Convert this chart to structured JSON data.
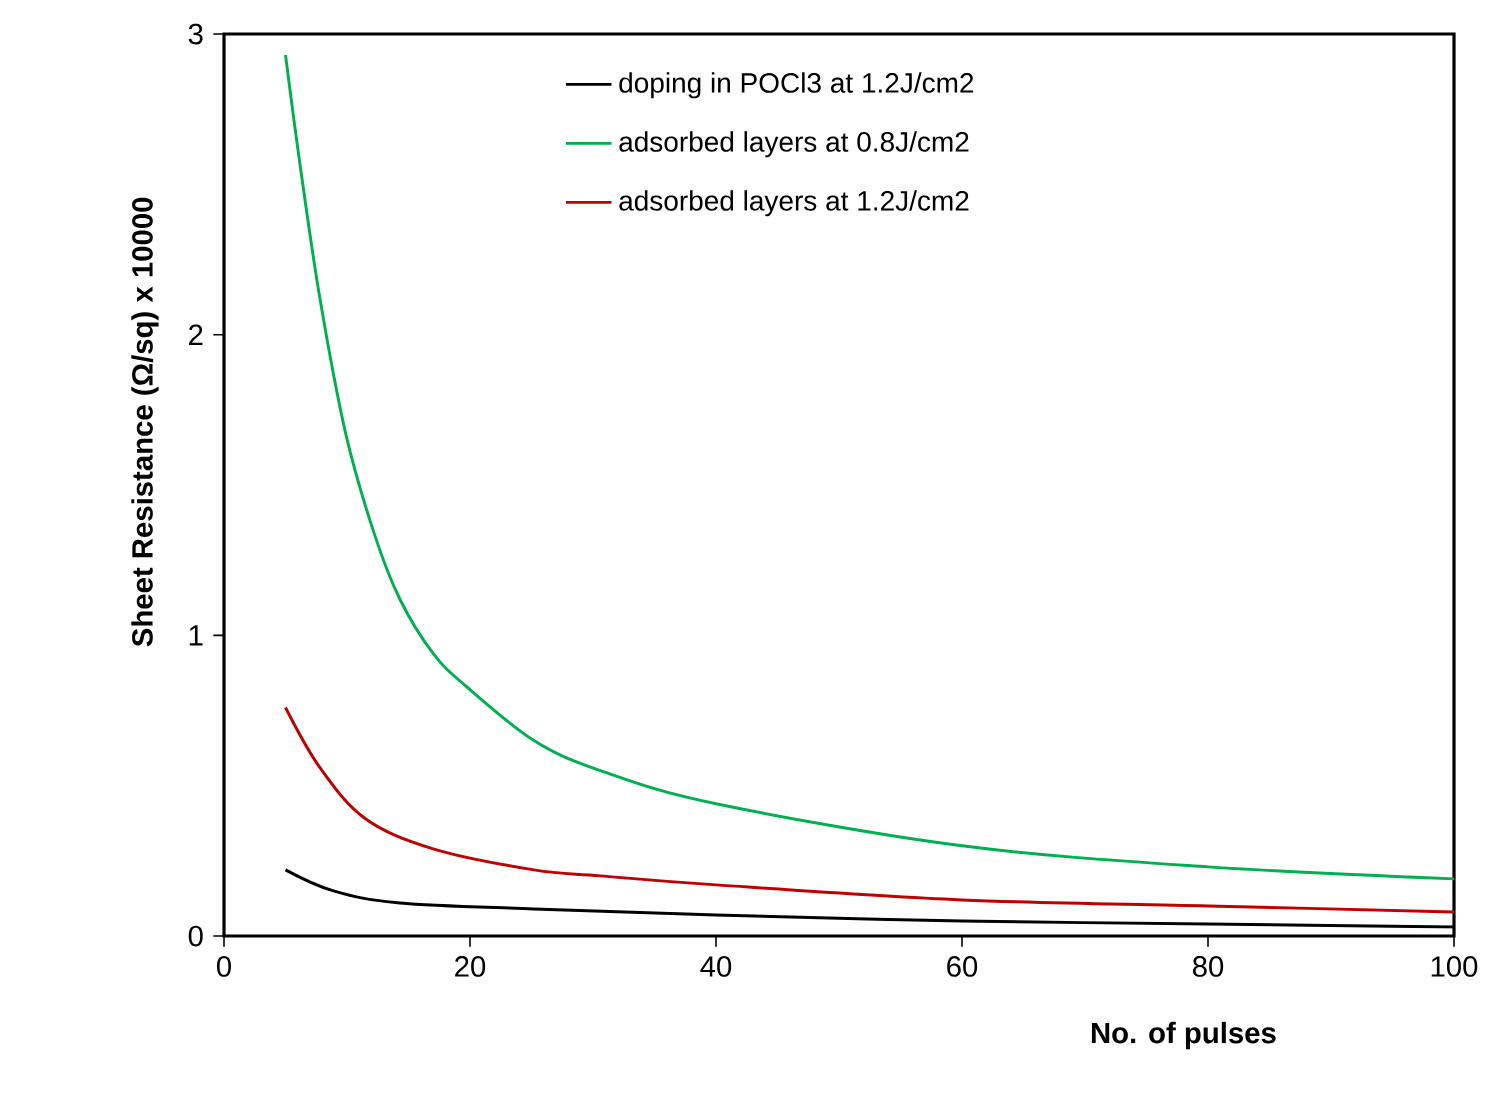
{
  "chart_data": {
    "type": "line",
    "xlabel": "No. of pulses",
    "ylabel": "Sheet Resistance (Ω/sq)    x 10000",
    "xlim": [
      0,
      100
    ],
    "ylim": [
      0,
      3
    ],
    "xticks": [
      0,
      20,
      40,
      60,
      80,
      100
    ],
    "yticks": [
      0,
      1,
      2,
      3
    ],
    "grid": false,
    "legend": "top",
    "marker": "none",
    "line_style": "solid",
    "series": [
      {
        "name": "doping in POCl3 at 1.2J/cm2",
        "color": "#000000",
        "x": [
          5,
          8.9,
          14.3,
          25.2,
          40,
          60,
          80,
          100
        ],
        "values": [
          0.22,
          0.15,
          0.11,
          0.09,
          0.07,
          0.05,
          0.04,
          0.03
        ]
      },
      {
        "name": "adsorbed layers at 0.8J/cm2",
        "color": "#00b050",
        "x": [
          5,
          6.2,
          7.8,
          9.9,
          12.2,
          14.3,
          17,
          19.7,
          25.2,
          30.6,
          40,
          60,
          80,
          100
        ],
        "values": [
          2.93,
          2.56,
          2.12,
          1.67,
          1.34,
          1.12,
          0.94,
          0.83,
          0.65,
          0.55,
          0.44,
          0.3,
          0.23,
          0.19
        ]
      },
      {
        "name": "adsorbed layers at 1.2J/cm2",
        "color": "#c00000",
        "x": [
          5,
          7.8,
          11.5,
          17,
          25.2,
          30.6,
          40,
          60,
          80,
          100
        ],
        "values": [
          0.76,
          0.56,
          0.39,
          0.29,
          0.22,
          0.2,
          0.17,
          0.12,
          0.1,
          0.08
        ]
      }
    ]
  }
}
